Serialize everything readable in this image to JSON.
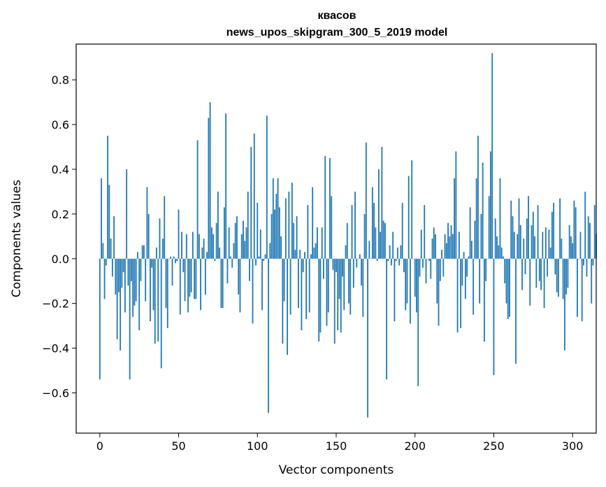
{
  "chart_data": {
    "type": "bar",
    "title": "квасов",
    "subtitle": "news_upos_skipgram_300_5_2019 model",
    "xlabel": "Vector components",
    "ylabel": "Components values",
    "xlim": [
      -15,
      315
    ],
    "ylim": [
      -0.78,
      0.96
    ],
    "xticks": [
      0,
      50,
      100,
      150,
      200,
      250,
      300
    ],
    "yticks": [
      -0.6,
      -0.4,
      -0.2,
      0.0,
      0.2,
      0.4,
      0.6,
      0.8
    ],
    "xtick_labels": [
      "0",
      "50",
      "100",
      "150",
      "200",
      "250",
      "300"
    ],
    "ytick_labels": [
      "−0.6",
      "−0.4",
      "−0.2",
      "0.0",
      "0.2",
      "0.4",
      "0.6",
      "0.8"
    ],
    "grid": false,
    "bar_color": "#1f77b4",
    "values": [
      -0.54,
      0.36,
      0.07,
      -0.18,
      -0.03,
      0.55,
      0.33,
      0.09,
      -0.08,
      0.19,
      -0.16,
      -0.36,
      -0.15,
      -0.41,
      -0.13,
      -0.06,
      -0.24,
      0.4,
      -0.12,
      -0.54,
      -0.1,
      -0.26,
      -0.21,
      -0.19,
      0.03,
      -0.32,
      -0.1,
      0.06,
      0.06,
      -0.19,
      0.32,
      0.2,
      -0.28,
      -0.04,
      -0.23,
      -0.38,
      0.05,
      -0.37,
      0.18,
      -0.49,
      0.09,
      0.28,
      -0.22,
      -0.31,
      0.0,
      0.01,
      -0.12,
      0.01,
      -0.02,
      -0.01,
      0.22,
      -0.25,
      0.12,
      -0.06,
      -0.19,
      0.11,
      -0.24,
      -0.17,
      -0.15,
      0.12,
      -0.18,
      -0.18,
      0.53,
      0.11,
      -0.23,
      0.05,
      0.09,
      -0.16,
      0.03,
      0.63,
      0.7,
      0.14,
      0.11,
      -0.01,
      0.16,
      0.3,
      0.05,
      -0.22,
      -0.22,
      0.23,
      0.65,
      -0.11,
      0.14,
      0.01,
      -0.04,
      0.07,
      0.16,
      0.19,
      -0.16,
      -0.24,
      0.11,
      0.17,
      0.08,
      0.14,
      0.3,
      -0.1,
      0.5,
      -0.29,
      0.56,
      -0.03,
      0.25,
      0.01,
      0.13,
      -0.23,
      -0.01,
      0.02,
      0.64,
      -0.69,
      0.07,
      0.2,
      0.36,
      0.22,
      0.29,
      0.36,
      0.23,
      0.1,
      -0.38,
      -0.19,
      0.27,
      -0.43,
      0.3,
      -0.25,
      0.34,
      0.16,
      0.04,
      0.19,
      -0.22,
      0.04,
      -0.32,
      -0.06,
      0.03,
      -0.27,
      0.24,
      -0.24,
      0.02,
      0.32,
      0.05,
      0.07,
      0.14,
      -0.37,
      -0.33,
      0.14,
      -0.09,
      0.46,
      -0.3,
      -0.24,
      0.45,
      0.28,
      -0.05,
      -0.38,
      -0.06,
      -0.32,
      -0.18,
      -0.33,
      -0.08,
      -0.23,
      0.06,
      0.16,
      -0.2,
      -0.25,
      0.24,
      -0.13,
      0.3,
      -0.04,
      0.0,
      0.02,
      -0.12,
      -0.26,
      0.2,
      0.52,
      -0.71,
      0.08,
      0.0,
      0.32,
      0.25,
      0.14,
      -0.01,
      0.4,
      0.12,
      0.5,
      0.17,
      0.16,
      -0.54,
      -0.01,
      0.06,
      -0.03,
      0.12,
      -0.28,
      -0.01,
      0.05,
      -0.03,
      0.06,
      0.25,
      -0.06,
      -0.23,
      -0.2,
      0.37,
      -0.29,
      0.44,
      0.0,
      -0.17,
      -0.24,
      -0.57,
      -0.08,
      0.13,
      -0.04,
      0.24,
      -0.11,
      0.0,
      -0.01,
      -0.09,
      0.09,
      0.14,
      0.11,
      -0.2,
      -0.3,
      -0.1,
      0.04,
      -0.08,
      0.11,
      0.07,
      0.16,
      0.1,
      0.15,
      0.11,
      0.36,
      0.48,
      -0.33,
      0.12,
      -0.31,
      -0.12,
      0.03,
      -0.18,
      -0.08,
      0.01,
      0.23,
      0.08,
      -0.25,
      0.17,
      0.36,
      0.55,
      -0.2,
      0.2,
      0.43,
      -0.37,
      -0.1,
      0.0,
      0.28,
      0.48,
      0.92,
      -0.52,
      0.18,
      0.1,
      0.06,
      0.36,
      0.05,
      0.01,
      -0.11,
      -0.2,
      -0.27,
      -0.26,
      0.26,
      0.19,
      0.12,
      -0.47,
      0.11,
      0.27,
      0.15,
      -0.14,
      0.09,
      -0.07,
      0.18,
      0.28,
      -0.21,
      0.15,
      0.21,
      0.1,
      -0.13,
      0.24,
      -0.1,
      -0.14,
      0.12,
      -0.22,
      0.14,
      -0.08,
      0.13,
      0.05,
      0.21,
      0.25,
      -0.07,
      -0.15,
      -0.17,
      0.27,
      0.09,
      -0.18,
      -0.41,
      -0.16,
      -0.13,
      0.15,
      0.1,
      0.07,
      0.26,
      0.23,
      -0.26,
      0.0,
      0.12,
      -0.28,
      -0.03,
      0.3,
      -0.08,
      0.19,
      0.16,
      -0.2,
      -0.03,
      0.24,
      0.11
    ]
  }
}
